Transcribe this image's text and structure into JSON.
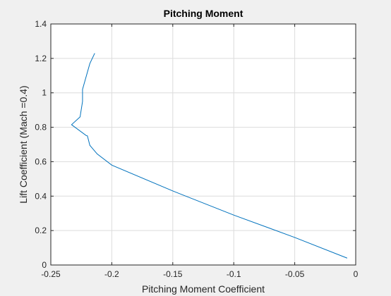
{
  "chart_data": {
    "type": "line",
    "title": "Pitching Moment",
    "xlabel": "Pitching Moment Coefficient",
    "ylabel": "Lift Coefficient (Mach =0.4)",
    "xlim": [
      -0.25,
      0
    ],
    "ylim": [
      0,
      1.4
    ],
    "grid": true,
    "xticks": [
      -0.25,
      -0.2,
      -0.15,
      -0.1,
      -0.05,
      0
    ],
    "xtick_labels": [
      "-0.25",
      "-0.2",
      "-0.15",
      "-0.1",
      "-0.05",
      "0"
    ],
    "yticks": [
      0,
      0.2,
      0.4,
      0.6,
      0.8,
      1,
      1.2,
      1.4
    ],
    "ytick_labels": [
      "0",
      "0.2",
      "0.4",
      "0.6",
      "0.8",
      "1",
      "1.2",
      "1.4"
    ],
    "series": [
      {
        "color": "#0072bd",
        "x": [
          -0.007,
          -0.05,
          -0.1,
          -0.15,
          -0.2,
          -0.212,
          -0.218,
          -0.22,
          -0.221,
          -0.233,
          -0.226,
          -0.224,
          -0.224,
          -0.222,
          -0.218,
          -0.214
        ],
        "y": [
          0.04,
          0.16,
          0.29,
          0.43,
          0.58,
          0.645,
          0.695,
          0.75,
          0.752,
          0.815,
          0.86,
          0.95,
          1.02,
          1.07,
          1.17,
          1.23
        ]
      }
    ]
  }
}
